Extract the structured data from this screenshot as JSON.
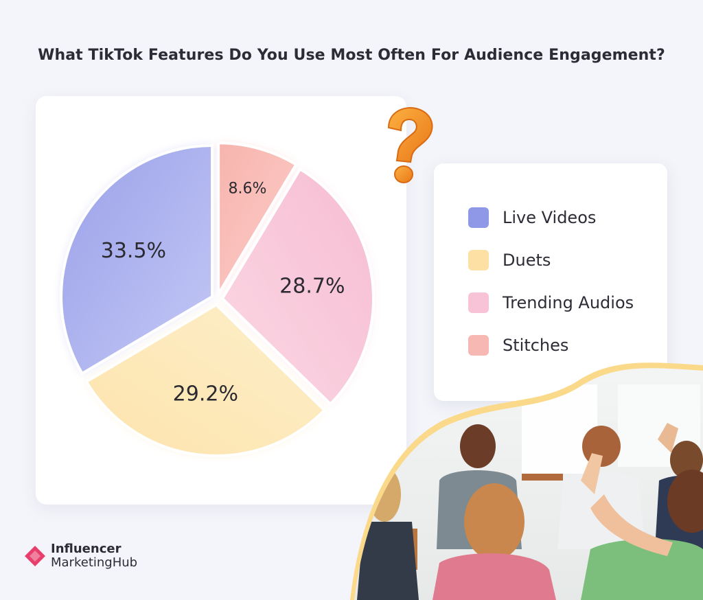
{
  "title": "What TikTok Features Do You Use Most Often For Audience Engagement?",
  "chart_data": {
    "type": "pie",
    "title": "What TikTok Features Do You Use Most Often For Audience Engagement?",
    "categories": [
      "Live Videos",
      "Duets",
      "Trending Audios",
      "Stitches"
    ],
    "values": [
      33.5,
      29.2,
      28.7,
      8.6
    ],
    "labels": [
      "33.5%",
      "29.2%",
      "28.7%",
      "8.6%"
    ],
    "colors": [
      "#a9b0ee",
      "#fde3a8",
      "#f9c6d8",
      "#f8bcb8"
    ],
    "legend_position": "right"
  },
  "legend": {
    "items": [
      {
        "label": "Live Videos",
        "color": "#8f98e6"
      },
      {
        "label": "Duets",
        "color": "#fde0a4"
      },
      {
        "label": "Trending Audios",
        "color": "#f8c3d6"
      },
      {
        "label": "Stitches",
        "color": "#f7b7b2"
      }
    ]
  },
  "logo": {
    "line1": "Influencer",
    "line2": "MarketingHub",
    "brand_color": "#e83e6b"
  },
  "decor": {
    "question_icon": "question-mark-icon",
    "photo": "audience-raising-hands-photo",
    "accent_wave_color": "#fbd98a"
  }
}
